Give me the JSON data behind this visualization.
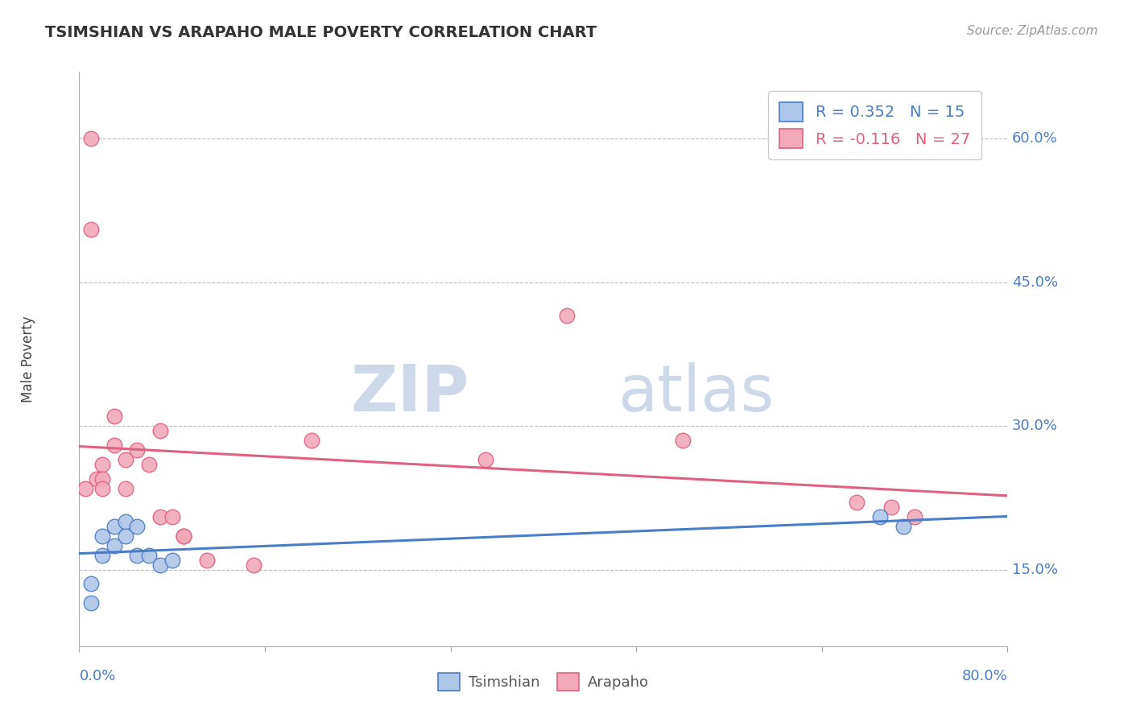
{
  "title": "TSIMSHIAN VS ARAPAHO MALE POVERTY CORRELATION CHART",
  "source": "Source: ZipAtlas.com",
  "ylabel": "Male Poverty",
  "xlim": [
    0.0,
    0.8
  ],
  "ylim": [
    0.07,
    0.67
  ],
  "yticks": [
    0.15,
    0.3,
    0.45,
    0.6
  ],
  "ytick_labels": [
    "15.0%",
    "30.0%",
    "45.0%",
    "60.0%"
  ],
  "xtick_left": "0.0%",
  "xtick_right": "80.0%",
  "tsimshian_color": "#aec6e8",
  "arapaho_color": "#f2aabb",
  "tsimshian_edge_color": "#4a7cc7",
  "arapaho_edge_color": "#e06080",
  "tsimshian_line_color": "#4a7cc7",
  "arapaho_line_color": "#e06080",
  "label_color": "#4a7cc7",
  "tsimshian_R": 0.352,
  "tsimshian_N": 15,
  "arapaho_R": -0.116,
  "arapaho_N": 27,
  "tsimshian_x": [
    0.01,
    0.01,
    0.02,
    0.02,
    0.03,
    0.03,
    0.04,
    0.04,
    0.05,
    0.05,
    0.06,
    0.07,
    0.08,
    0.69,
    0.71
  ],
  "tsimshian_y": [
    0.135,
    0.115,
    0.185,
    0.165,
    0.195,
    0.175,
    0.2,
    0.185,
    0.195,
    0.165,
    0.165,
    0.155,
    0.16,
    0.205,
    0.195
  ],
  "arapaho_x": [
    0.005,
    0.01,
    0.01,
    0.015,
    0.02,
    0.02,
    0.02,
    0.03,
    0.03,
    0.04,
    0.04,
    0.05,
    0.06,
    0.07,
    0.07,
    0.08,
    0.09,
    0.09,
    0.11,
    0.15,
    0.2,
    0.35,
    0.42,
    0.52,
    0.67,
    0.7,
    0.72
  ],
  "arapaho_y": [
    0.235,
    0.6,
    0.505,
    0.245,
    0.26,
    0.245,
    0.235,
    0.31,
    0.28,
    0.265,
    0.235,
    0.275,
    0.26,
    0.295,
    0.205,
    0.205,
    0.185,
    0.185,
    0.16,
    0.155,
    0.285,
    0.265,
    0.415,
    0.285,
    0.22,
    0.215,
    0.205
  ],
  "background_color": "#ffffff",
  "watermark_zip": "ZIP",
  "watermark_atlas": "atlas",
  "watermark_color": "#cdd9e8"
}
